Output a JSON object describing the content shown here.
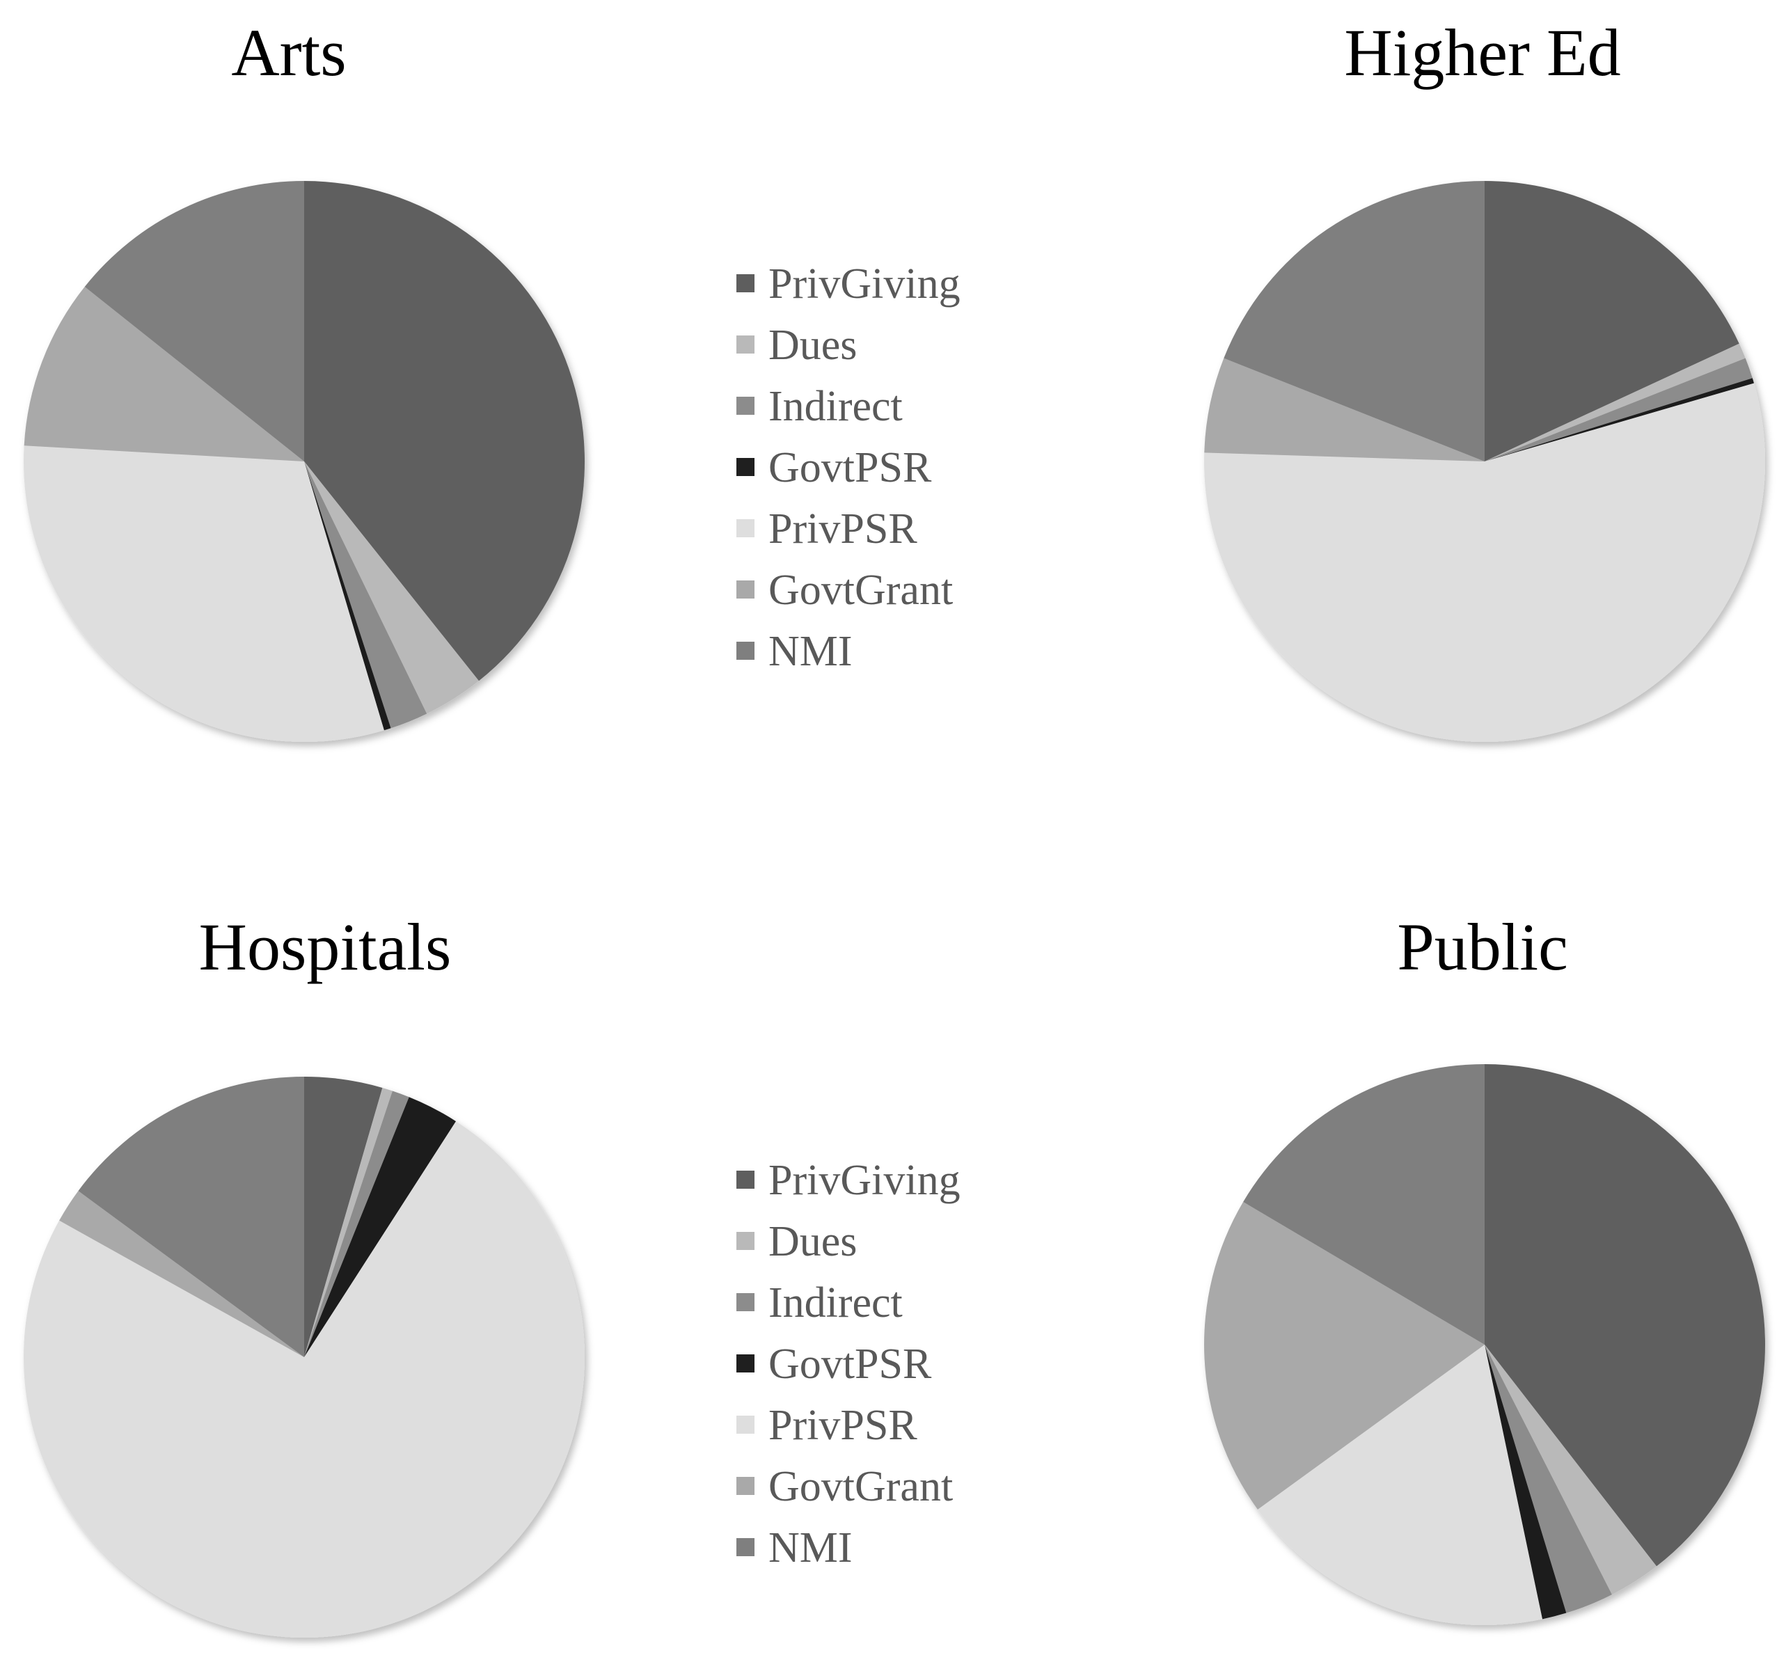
{
  "categories": [
    "PrivGiving",
    "Dues",
    "Indirect",
    "GovtPSR",
    "PrivPSR",
    "GovtGrant",
    "NMI"
  ],
  "colors": {
    "PrivGiving": "#5e5e5e",
    "Dues": "#b9b9b9",
    "Indirect": "#8c8c8c",
    "GovtPSR": "#1f1f1f",
    "PrivPSR": "#dedede",
    "GovtGrant": "#a9a9a9",
    "NMI": "#7f7f7f"
  },
  "legends": [
    {
      "items": [
        "PrivGiving",
        "Dues",
        "Indirect",
        "GovtPSR",
        "PrivPSR",
        "GovtGrant",
        "NMI"
      ]
    },
    {
      "items": [
        "PrivGiving",
        "Dues",
        "Indirect",
        "GovtPSR",
        "PrivPSR",
        "GovtGrant",
        "NMI"
      ]
    }
  ],
  "chart_data": [
    {
      "type": "pie",
      "title": "Arts",
      "labels": [
        "PrivGiving",
        "Dues",
        "Indirect",
        "GovtPSR",
        "PrivPSR",
        "GovtGrant",
        "NMI"
      ],
      "values": [
        39.3,
        3.5,
        2.2,
        0.4,
        30.5,
        9.8,
        14.3
      ]
    },
    {
      "type": "pie",
      "title": "Higher Ed",
      "labels": [
        "PrivGiving",
        "Dues",
        "Indirect",
        "GovtPSR",
        "PrivPSR",
        "GovtGrant",
        "NMI"
      ],
      "values": [
        18.1,
        0.9,
        1.2,
        0.3,
        55.0,
        5.5,
        19.0
      ]
    },
    {
      "type": "pie",
      "title": "Hospitals",
      "labels": [
        "PrivGiving",
        "Dues",
        "Indirect",
        "GovtPSR",
        "PrivPSR",
        "GovtGrant",
        "NMI"
      ],
      "values": [
        4.5,
        0.6,
        1.0,
        3.0,
        74.0,
        2.0,
        14.9
      ]
    },
    {
      "type": "pie",
      "title": "Public",
      "labels": [
        "PrivGiving",
        "Dues",
        "Indirect",
        "GovtPSR",
        "PrivPSR",
        "GovtGrant",
        "NMI"
      ],
      "values": [
        39.5,
        3.0,
        2.8,
        1.4,
        18.3,
        18.5,
        16.5
      ]
    }
  ]
}
